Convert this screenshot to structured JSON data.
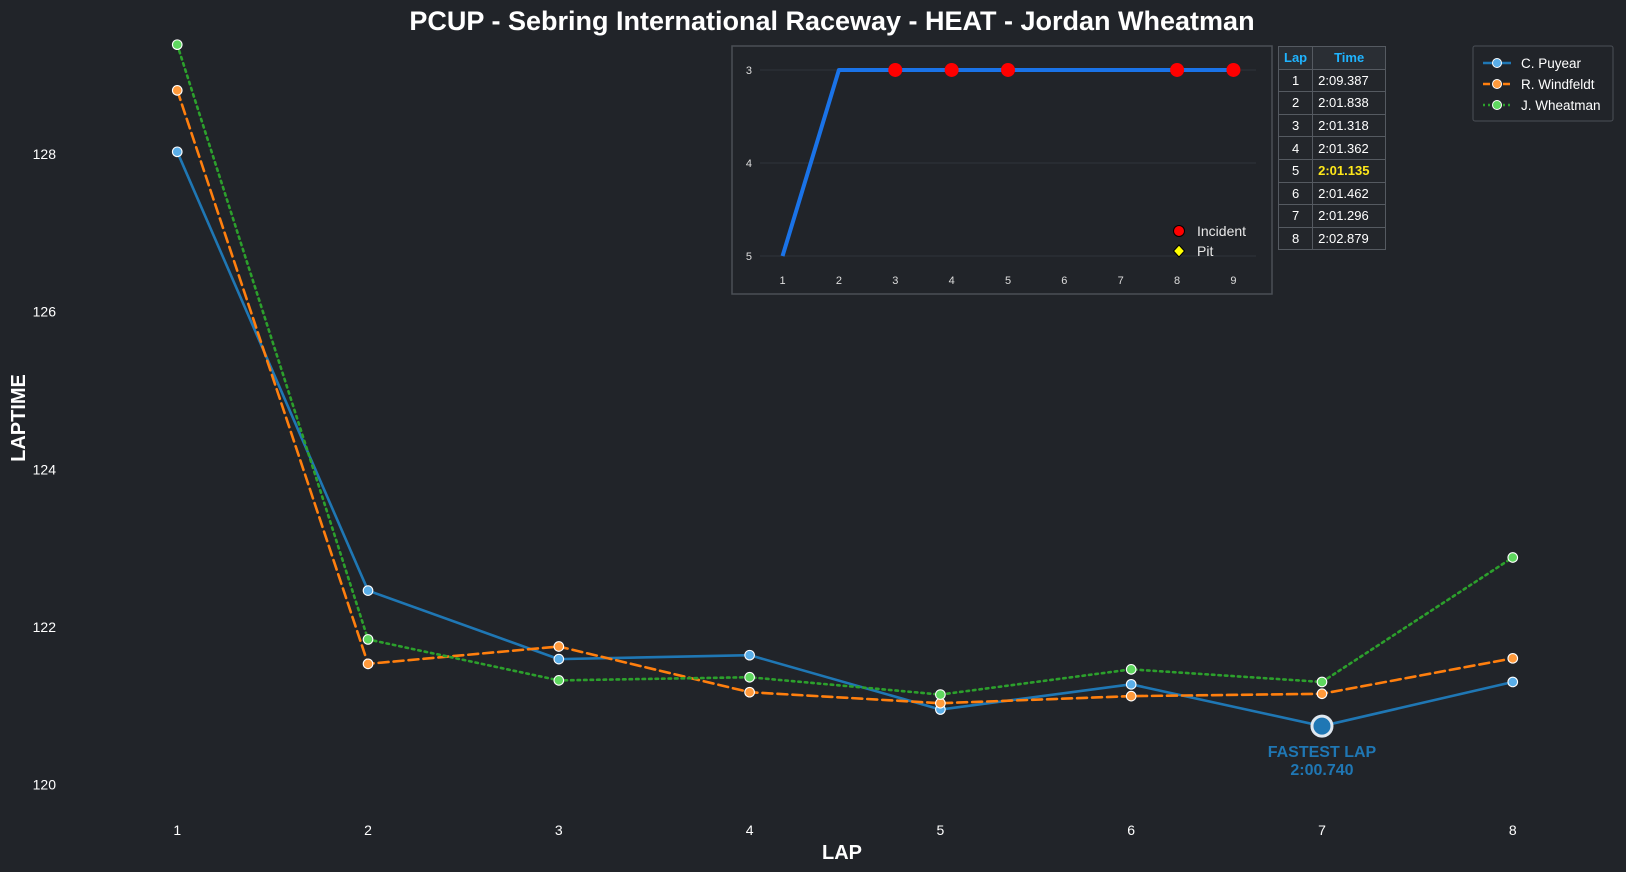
{
  "colors": {
    "background": "#212429",
    "series_blue": "#1f77b4",
    "series_orange": "#ff7f0e",
    "series_green": "#2ca02c",
    "position_line": "#1a73e8",
    "incident": "#ff0000",
    "pit": "#ffff00",
    "best_lap": "#ffe81a",
    "table_header": "#1fb4ff"
  },
  "chart_data": [
    {
      "type": "line",
      "title": "PCUP - Sebring International Raceway - HEAT - Jordan Wheatman",
      "xlabel": "LAP",
      "ylabel": "LAPTIME",
      "x": [
        1,
        2,
        3,
        4,
        5,
        6,
        7,
        8
      ],
      "xlim": [
        0.7,
        8.3
      ],
      "ylim": [
        119.7,
        129.5
      ],
      "yticks": [
        120,
        122,
        124,
        126,
        128
      ],
      "series": [
        {
          "name": "C. Puyear",
          "style": "solid",
          "color": "#1f77b4",
          "marker_fill": "#5aaee8",
          "values": [
            128.03,
            122.46,
            121.59,
            121.64,
            120.95,
            121.27,
            120.74,
            121.3
          ]
        },
        {
          "name": "R. Windfeldt",
          "style": "dashed",
          "color": "#ff7f0e",
          "marker_fill": "#ff9a3c",
          "values": [
            128.81,
            121.53,
            121.75,
            121.17,
            121.03,
            121.12,
            121.15,
            121.6
          ]
        },
        {
          "name": "J. Wheatman",
          "style": "dotted",
          "color": "#2ca02c",
          "marker_fill": "#5fd75f",
          "values": [
            129.39,
            121.84,
            121.32,
            121.36,
            121.14,
            121.46,
            121.3,
            122.88
          ]
        }
      ],
      "annotation": {
        "label": "FASTEST LAP",
        "value_text": "2:00.740",
        "x": 7,
        "y": 120.74
      },
      "legend": {
        "placement": "top-right"
      },
      "grid": false
    },
    {
      "type": "line",
      "title": "",
      "x": [
        1,
        2,
        3,
        4,
        5,
        6,
        7,
        8,
        9
      ],
      "values": [
        5,
        3,
        3,
        3,
        3,
        3,
        3,
        3,
        3
      ],
      "xlim": [
        0.6,
        9.4
      ],
      "ylim": [
        5.15,
        2.85
      ],
      "yticks": [
        3,
        4,
        5
      ],
      "y_inverted": true,
      "grid": true,
      "incidents_x": [
        3,
        4,
        5,
        8,
        9
      ],
      "pits_x": [],
      "legend": {
        "placement": "bottom-right",
        "entries": [
          "Incident",
          "Pit"
        ]
      }
    }
  ],
  "table": {
    "headers": [
      "Lap",
      "Time"
    ],
    "rows": [
      {
        "lap": "1",
        "time": "2:09.387",
        "best": false
      },
      {
        "lap": "2",
        "time": "2:01.838",
        "best": false
      },
      {
        "lap": "3",
        "time": "2:01.318",
        "best": false
      },
      {
        "lap": "4",
        "time": "2:01.362",
        "best": false
      },
      {
        "lap": "5",
        "time": "2:01.135",
        "best": true
      },
      {
        "lap": "6",
        "time": "2:01.462",
        "best": false
      },
      {
        "lap": "7",
        "time": "2:01.296",
        "best": false
      },
      {
        "lap": "8",
        "time": "2:02.879",
        "best": false
      }
    ]
  }
}
